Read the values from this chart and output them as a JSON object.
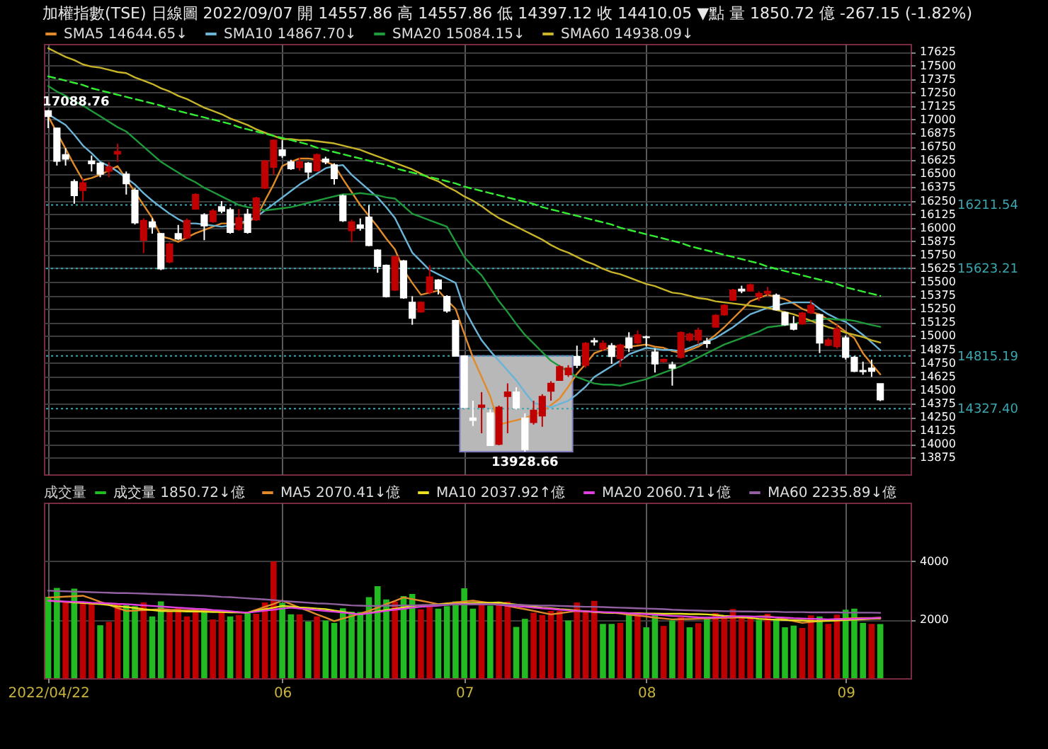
{
  "chart_data": [
    {
      "type": "candlestick",
      "title": "加權指數(TSE)  日線圖  2022/09/07  開 14557.86  高 14557.86  低 14397.12  收 14410.05 ▼點  量 1850.72 億  -267.15 (-1.82%)",
      "categories": [
        "2022/04/22",
        null,
        null,
        null,
        null,
        null,
        null,
        null,
        null,
        null,
        null,
        null,
        null,
        null,
        null,
        null,
        null,
        null,
        null,
        null,
        null,
        null,
        null,
        null,
        null,
        null,
        null,
        "06",
        null,
        null,
        null,
        null,
        null,
        null,
        null,
        null,
        null,
        null,
        null,
        null,
        null,
        null,
        null,
        null,
        null,
        null,
        null,
        null,
        "07",
        null,
        null,
        null,
        null,
        null,
        null,
        null,
        null,
        null,
        null,
        null,
        null,
        null,
        null,
        null,
        null,
        null,
        null,
        null,
        null,
        "08",
        null,
        null,
        null,
        null,
        null,
        null,
        null,
        null,
        null,
        null,
        null,
        null,
        null,
        null,
        null,
        null,
        null,
        null,
        null,
        null,
        null,
        null,
        "09",
        null,
        null,
        null,
        null
      ],
      "ohlc": [
        [
          17081,
          17088.76,
          16921,
          17029
        ],
        [
          16921,
          16925,
          16575,
          16616
        ],
        [
          16676,
          16736,
          16575,
          16635
        ],
        [
          16427,
          16447,
          16222,
          16298
        ],
        [
          16346,
          16455,
          16246,
          16415
        ],
        [
          16616,
          16668,
          16520,
          16592
        ],
        [
          16596,
          16608,
          16467,
          16496
        ],
        [
          16523,
          16608,
          16467,
          16563
        ],
        [
          16683,
          16776,
          16608,
          16704
        ],
        [
          16496,
          16520,
          16307,
          16407
        ],
        [
          16346,
          16367,
          16030,
          16045
        ],
        [
          15885,
          16086,
          15765,
          16066
        ],
        [
          16054,
          16086,
          15945,
          16006
        ],
        [
          15946,
          15950,
          15608,
          15620
        ],
        [
          15684,
          15865,
          15672,
          15849
        ],
        [
          15946,
          16026,
          15885,
          15897
        ],
        [
          15906,
          16086,
          15894,
          16066
        ],
        [
          16174,
          16319,
          16166,
          16307
        ],
        [
          16118,
          16134,
          15885,
          16018
        ],
        [
          16057,
          16174,
          16045,
          16154
        ],
        [
          16194,
          16246,
          16134,
          16154
        ],
        [
          16166,
          16186,
          15945,
          15957
        ],
        [
          15985,
          16174,
          15973,
          16093
        ],
        [
          16126,
          16174,
          15945,
          15957
        ],
        [
          16074,
          16286,
          16062,
          16274
        ],
        [
          16367,
          16628,
          16358,
          16616
        ],
        [
          16559,
          16816,
          16487,
          16809
        ],
        [
          16720,
          16809,
          16647,
          16668
        ],
        [
          16608,
          16628,
          16535,
          16547
        ],
        [
          16556,
          16647,
          16527,
          16608
        ],
        [
          16596,
          16608,
          16455,
          16515
        ],
        [
          16527,
          16688,
          16520,
          16676
        ],
        [
          16635,
          16656,
          16587,
          16608
        ],
        [
          16580,
          16596,
          16399,
          16455
        ],
        [
          16295,
          16307,
          16054,
          16066
        ],
        [
          15973,
          16074,
          15865,
          16054
        ],
        [
          16026,
          16086,
          15973,
          15997
        ],
        [
          16098,
          16207,
          15829,
          15837
        ],
        [
          15793,
          15801,
          15584,
          15644
        ],
        [
          15653,
          15660,
          15355,
          15364
        ],
        [
          15424,
          15741,
          15416,
          15732
        ],
        [
          15693,
          15701,
          15344,
          15352
        ],
        [
          15311,
          15367,
          15103,
          15163
        ],
        [
          15223,
          15319,
          15214,
          15311
        ],
        [
          15404,
          15653,
          15383,
          15544
        ],
        [
          15516,
          15524,
          15383,
          15436
        ],
        [
          15364,
          15376,
          15214,
          15231
        ],
        [
          15142,
          15150,
          14810,
          14814
        ],
        [
          14814,
          14815,
          14330,
          14340
        ],
        [
          14240,
          14401,
          14167,
          14220
        ],
        [
          14341,
          14480,
          14100,
          14360
        ],
        [
          14288,
          14320,
          13983,
          13987
        ],
        [
          13999,
          14356,
          13989,
          14340
        ],
        [
          14440,
          14561,
          14100,
          14480
        ],
        [
          14480,
          14525,
          14320,
          14332
        ],
        [
          14240,
          14284,
          13928.66,
          13950
        ],
        [
          14200,
          14401,
          14180,
          14312
        ],
        [
          14260,
          14461,
          14160,
          14440
        ],
        [
          14489,
          14581,
          14401,
          14561
        ],
        [
          14589,
          14729,
          14585,
          14714
        ],
        [
          14641,
          14729,
          14621,
          14702
        ],
        [
          14810,
          14910,
          14702,
          14729
        ],
        [
          14729,
          14942,
          14705,
          14930
        ],
        [
          14955,
          14982,
          14910,
          14945
        ],
        [
          14882,
          14958,
          14862,
          14930
        ],
        [
          14910,
          14934,
          14741,
          14810
        ],
        [
          14790,
          14928,
          14714,
          14914
        ],
        [
          14982,
          15034,
          14850,
          14889
        ],
        [
          14934,
          15051,
          14922,
          15010
        ],
        [
          14990,
          15003,
          14902,
          14985
        ],
        [
          14850,
          14886,
          14661,
          14741
        ],
        [
          14762,
          14790,
          14753,
          14781
        ],
        [
          14733,
          14762,
          14540,
          14702
        ],
        [
          14802,
          15042,
          14790,
          15030
        ],
        [
          14962,
          15030,
          14946,
          15015
        ],
        [
          14962,
          15075,
          14922,
          15051
        ],
        [
          14950,
          14982,
          14889,
          14930
        ],
        [
          15082,
          15202,
          15075,
          15190
        ],
        [
          15195,
          15292,
          15187,
          15283
        ],
        [
          15331,
          15436,
          15323,
          15424
        ],
        [
          15432,
          15464,
          15395,
          15416
        ],
        [
          15416,
          15484,
          15412,
          15472
        ],
        [
          15364,
          15412,
          15323,
          15392
        ],
        [
          15395,
          15452,
          15371,
          15412
        ],
        [
          15376,
          15392,
          15235,
          15243
        ],
        [
          15215,
          15227,
          15094,
          15103
        ],
        [
          15111,
          15183,
          15051,
          15063
        ],
        [
          15111,
          15223,
          15103,
          15211
        ],
        [
          15215,
          15331,
          15202,
          15283
        ],
        [
          15195,
          15202,
          14841,
          14934
        ],
        [
          14914,
          14982,
          14906,
          14962
        ],
        [
          14902,
          15103,
          14882,
          15063
        ],
        [
          14982,
          15003,
          14781,
          14802
        ],
        [
          14802,
          14814,
          14665,
          14673
        ],
        [
          14680,
          14762,
          14641,
          14670
        ],
        [
          14702,
          14781,
          14621,
          14673
        ],
        [
          14557.86,
          14557.86,
          14397.12,
          14410.05
        ]
      ],
      "colors": [
        "#ffffff",
        "#ffffff",
        "#ffffff",
        "#ffffff",
        "#c00000",
        "#ffffff",
        "#ffffff",
        "#c00000",
        "#c00000",
        "#ffffff",
        "#ffffff",
        "#c00000",
        "#ffffff",
        "#ffffff",
        "#c00000",
        "#ffffff",
        "#c00000",
        "#c00000",
        "#ffffff",
        "#c00000",
        "#ffffff",
        "#ffffff",
        "#c00000",
        "#ffffff",
        "#c00000",
        "#c00000",
        "#c00000",
        "#ffffff",
        "#ffffff",
        "#c00000",
        "#ffffff",
        "#c00000",
        "#ffffff",
        "#ffffff",
        "#ffffff",
        "#c00000",
        "#ffffff",
        "#ffffff",
        "#ffffff",
        "#ffffff",
        "#c00000",
        "#ffffff",
        "#ffffff",
        "#c00000",
        "#c00000",
        "#ffffff",
        "#ffffff",
        "#ffffff",
        "#ffffff",
        "#ffffff",
        "#c00000",
        "#ffffff",
        "#c00000",
        "#c00000",
        "#ffffff",
        "#ffffff",
        "#c00000",
        "#c00000",
        "#c00000",
        "#c00000",
        "#c00000",
        "#ffffff",
        "#c00000",
        "#ffffff",
        "#c00000",
        "#ffffff",
        "#c00000",
        "#ffffff",
        "#c00000",
        "#ffffff",
        "#ffffff",
        "#c00000",
        "#ffffff",
        "#c00000",
        "#c00000",
        "#c00000",
        "#ffffff",
        "#c00000",
        "#c00000",
        "#c00000",
        "#ffffff",
        "#c00000",
        "#c00000",
        "#c00000",
        "#ffffff",
        "#ffffff",
        "#ffffff",
        "#c00000",
        "#c00000",
        "#ffffff",
        "#c00000",
        "#c00000",
        "#ffffff",
        "#ffffff",
        "#ffffff",
        "#ffffff",
        "#ffffff"
      ],
      "series": [
        {
          "type": "line",
          "name": "SMA5 14644.65↓",
          "color": "#e08a2a",
          "values": [
            17030,
            16880,
            16730,
            16580,
            16440,
            16460,
            16490,
            16530,
            16570,
            16450,
            16330,
            16210,
            16090,
            15920,
            15900,
            15870,
            15910,
            15950,
            15980,
            16010,
            16040,
            16040,
            16030,
            16060,
            16090,
            16250,
            16400,
            16570,
            16610,
            16640,
            16640,
            16630,
            16610,
            16580,
            16450,
            16330,
            16210,
            16110,
            16010,
            15900,
            15800,
            15610,
            15490,
            15380,
            15400,
            15420,
            15330,
            15250,
            15020,
            14800,
            14620,
            14440,
            14180,
            14200,
            14220,
            14240,
            14270,
            14300,
            14360,
            14420,
            14530,
            14650,
            14740,
            14840,
            14870,
            14900,
            14900,
            14900,
            14910,
            14920,
            14900,
            14890,
            14860,
            14840,
            14870,
            14900,
            14950,
            15010,
            15080,
            15160,
            15240,
            15320,
            15350,
            15380,
            15360,
            15340,
            15300,
            15250,
            15220,
            15200,
            15150,
            15100,
            15040,
            14980,
            14840,
            14740,
            14644.65
          ]
        },
        {
          "type": "line",
          "name": "SMA10 14867.70↓",
          "color": "#6ab4d8",
          "values": [
            17050,
            17000,
            16950,
            16860,
            16760,
            16690,
            16610,
            16570,
            16520,
            16460,
            16400,
            16320,
            16250,
            16190,
            16130,
            16080,
            16040,
            16040,
            16030,
            16020,
            16010,
            16020,
            16040,
            16070,
            16100,
            16160,
            16220,
            16280,
            16340,
            16400,
            16450,
            16500,
            16550,
            16570,
            16580,
            16490,
            16420,
            16350,
            16280,
            16190,
            16090,
            15930,
            15770,
            15690,
            15610,
            15570,
            15530,
            15490,
            15250,
            15100,
            14960,
            14860,
            14770,
            14680,
            14590,
            14480,
            14380,
            14360,
            14340,
            14370,
            14400,
            14460,
            14530,
            14620,
            14670,
            14720,
            14770,
            14830,
            14860,
            14890,
            14880,
            14870,
            14870,
            14860,
            14890,
            14920,
            14950,
            14980,
            15030,
            15080,
            15140,
            15200,
            15230,
            15260,
            15280,
            15300,
            15310,
            15310,
            15310,
            15250,
            15200,
            15160,
            15130,
            15070,
            15010,
            14940,
            14867.7
          ]
        },
        {
          "type": "line",
          "name": "SMA20 15084.15↓",
          "color": "#1f9a3a",
          "values": [
            17310,
            17260,
            17220,
            17170,
            17130,
            17080,
            17030,
            16980,
            16930,
            16890,
            16820,
            16750,
            16680,
            16610,
            16560,
            16510,
            16460,
            16420,
            16370,
            16330,
            16290,
            16250,
            16210,
            16190,
            16180,
            16160,
            16170,
            16180,
            16190,
            16210,
            16230,
            16250,
            16270,
            16290,
            16310,
            16310,
            16320,
            16310,
            16300,
            16280,
            16270,
            16200,
            16130,
            16100,
            16070,
            16040,
            16010,
            15870,
            15730,
            15640,
            15560,
            15440,
            15320,
            15220,
            15110,
            15010,
            14930,
            14850,
            14770,
            14720,
            14670,
            14620,
            14590,
            14560,
            14550,
            14550,
            14540,
            14560,
            14580,
            14600,
            14630,
            14660,
            14690,
            14720,
            14760,
            14800,
            14840,
            14880,
            14920,
            14950,
            14980,
            15010,
            15040,
            15080,
            15090,
            15100,
            15110,
            15130,
            15140,
            15150,
            15160,
            15150,
            15150,
            15140,
            15120,
            15100,
            15084.15
          ]
        },
        {
          "type": "line",
          "name": "SMA60 14938.09↓",
          "color": "#c8b428",
          "values": [
            17660,
            17620,
            17580,
            17550,
            17510,
            17490,
            17480,
            17460,
            17440,
            17430,
            17390,
            17360,
            17330,
            17290,
            17260,
            17220,
            17190,
            17150,
            17110,
            17080,
            17050,
            17010,
            16980,
            16950,
            16910,
            16880,
            16850,
            16820,
            16820,
            16810,
            16810,
            16800,
            16790,
            16780,
            16760,
            16740,
            16720,
            16690,
            16660,
            16630,
            16600,
            16570,
            16540,
            16500,
            16460,
            16430,
            16380,
            16340,
            16290,
            16250,
            16200,
            16140,
            16090,
            16050,
            16010,
            15970,
            15930,
            15890,
            15840,
            15800,
            15770,
            15730,
            15690,
            15660,
            15620,
            15590,
            15570,
            15540,
            15510,
            15480,
            15460,
            15430,
            15400,
            15390,
            15370,
            15350,
            15340,
            15320,
            15310,
            15300,
            15290,
            15280,
            15270,
            15260,
            15240,
            15220,
            15200,
            15170,
            15140,
            15110,
            15080,
            15060,
            15030,
            15010,
            14990,
            14960,
            14938.09
          ]
        },
        {
          "type": "line",
          "color": "#33ee33",
          "line_style": "dashed",
          "values": [
            17400,
            17380,
            17360,
            17340,
            17320,
            17290,
            17270,
            17250,
            17230,
            17210,
            17190,
            17170,
            17150,
            17130,
            17100,
            17080,
            17060,
            17040,
            17020,
            17000,
            16980,
            16960,
            16930,
            16910,
            16890,
            16870,
            16850,
            16830,
            16810,
            16790,
            16770,
            16740,
            16720,
            16700,
            16680,
            16660,
            16640,
            16620,
            16600,
            16580,
            16550,
            16530,
            16510,
            16490,
            16470,
            16450,
            16430,
            16410,
            16380,
            16360,
            16340,
            16320,
            16300,
            16280,
            16260,
            16240,
            16220,
            16190,
            16170,
            16150,
            16130,
            16110,
            16090,
            16070,
            16050,
            16030,
            16000,
            15980,
            15960,
            15940,
            15920,
            15900,
            15880,
            15860,
            15830,
            15810,
            15790,
            15770,
            15750,
            15730,
            15710,
            15690,
            15670,
            15640,
            15620,
            15600,
            15580,
            15560,
            15540,
            15520,
            15500,
            15480,
            15450,
            15430,
            15410,
            15390,
            15370
          ]
        }
      ],
      "ylim": [
        13720,
        17700
      ],
      "yticks": [
        13875,
        14000,
        14125,
        14250,
        14375,
        14500,
        14625,
        14750,
        14875,
        15000,
        15125,
        15250,
        15375,
        15500,
        15625,
        15750,
        15875,
        16000,
        16125,
        16250,
        16375,
        16500,
        16625,
        16750,
        16875,
        17000,
        17125,
        17250,
        17375,
        17500,
        17625
      ],
      "ref_lines": [
        {
          "axis": "y",
          "value": 16211.54,
          "label": "16211.54",
          "color": "#3aa6b0",
          "line_style": "dotted"
        },
        {
          "axis": "y",
          "value": 15623.21,
          "label": "15623.21",
          "color": "#3aa6b0",
          "line_style": "dotted"
        },
        {
          "axis": "y",
          "value": 14815.19,
          "label": "14815.19",
          "color": "#3aa6b0",
          "line_style": "dotted"
        },
        {
          "axis": "y",
          "value": 14327.4,
          "label": "14327.40",
          "color": "#3aa6b0",
          "line_style": "dotted"
        }
      ],
      "annotations": [
        {
          "text": "17088.76",
          "y": 17088.76
        },
        {
          "text": "13928.66",
          "y": 13928.66
        }
      ],
      "grid": true,
      "legend": "top left",
      "tick_labels": "y"
    },
    {
      "type": "bar",
      "legend_title": "成交量",
      "categories": [
        "2022/04/22",
        null,
        null,
        null,
        null,
        null,
        null,
        null,
        null,
        null,
        null,
        null,
        null,
        null,
        null,
        null,
        null,
        null,
        null,
        null,
        null,
        null,
        null,
        null,
        null,
        null,
        null,
        "06",
        null,
        null,
        null,
        null,
        null,
        null,
        null,
        null,
        null,
        null,
        null,
        null,
        null,
        null,
        null,
        null,
        null,
        null,
        null,
        null,
        "07",
        null,
        null,
        null,
        null,
        null,
        null,
        null,
        null,
        null,
        null,
        null,
        null,
        null,
        null,
        null,
        null,
        null,
        null,
        null,
        null,
        "08",
        null,
        null,
        null,
        null,
        null,
        null,
        null,
        null,
        null,
        null,
        null,
        null,
        null,
        null,
        null,
        null,
        null,
        null,
        null,
        null,
        null,
        null,
        "09",
        null,
        null,
        null,
        null
      ],
      "series": [
        {
          "name": "成交量 1850.72↓億",
          "values": [
            2784,
            3086,
            2587,
            3062,
            2610,
            2587,
            1810,
            1926,
            2552,
            2494,
            2459,
            2587,
            2111,
            2622,
            2297,
            2413,
            2111,
            2366,
            2378,
            2007,
            2320,
            2111,
            2158,
            2227,
            2204,
            2587,
            3990,
            2575,
            2181,
            2181,
            1937,
            2111,
            1972,
            1891,
            2390,
            2274,
            2262,
            2772,
            3144,
            2691,
            2610,
            2807,
            2877,
            2355,
            2436,
            2378,
            2459,
            2622,
            3074,
            2378,
            2610,
            2482,
            2610,
            2610,
            1752,
            2030,
            2239,
            2158,
            2297,
            2297,
            1972,
            2587,
            2262,
            2645,
            1856,
            1856,
            1891,
            2216,
            2239,
            1740,
            2181,
            1786,
            1972,
            2088,
            1740,
            1879,
            2100,
            2227,
            2065,
            2366,
            2111,
            2065,
            1995,
            2204,
            2030,
            1740,
            1798,
            1717,
            2146,
            2111,
            1856,
            2169,
            2343,
            2378,
            1891,
            1856,
            1850.72
          ],
          "colors": [
            "#22bb22",
            "#22bb22",
            "#c00000",
            "#22bb22",
            "#c00000",
            "#c00000",
            "#22bb22",
            "#c00000",
            "#c00000",
            "#22bb22",
            "#22bb22",
            "#c00000",
            "#22bb22",
            "#22bb22",
            "#c00000",
            "#c00000",
            "#c00000",
            "#c00000",
            "#22bb22",
            "#c00000",
            "#c00000",
            "#22bb22",
            "#c00000",
            "#22bb22",
            "#c00000",
            "#c00000",
            "#c00000",
            "#22bb22",
            "#22bb22",
            "#c00000",
            "#22bb22",
            "#c00000",
            "#22bb22",
            "#22bb22",
            "#22bb22",
            "#22bb22",
            "#22bb22",
            "#22bb22",
            "#22bb22",
            "#22bb22",
            "#c00000",
            "#22bb22",
            "#22bb22",
            "#c00000",
            "#c00000",
            "#22bb22",
            "#22bb22",
            "#22bb22",
            "#22bb22",
            "#22bb22",
            "#c00000",
            "#22bb22",
            "#c00000",
            "#c00000",
            "#22bb22",
            "#22bb22",
            "#c00000",
            "#c00000",
            "#c00000",
            "#c00000",
            "#22bb22",
            "#c00000",
            "#c00000",
            "#c00000",
            "#22bb22",
            "#22bb22",
            "#c00000",
            "#22bb22",
            "#c00000",
            "#22bb22",
            "#22bb22",
            "#c00000",
            "#22bb22",
            "#c00000",
            "#22bb22",
            "#c00000",
            "#22bb22",
            "#c00000",
            "#c00000",
            "#c00000",
            "#c00000",
            "#c00000",
            "#22bb22",
            "#c00000",
            "#22bb22",
            "#22bb22",
            "#22bb22",
            "#c00000",
            "#c00000",
            "#22bb22",
            "#c00000",
            "#c00000",
            "#22bb22",
            "#22bb22",
            "#22bb22",
            "#c00000",
            "#22bb22"
          ]
        },
        {
          "type": "line",
          "name": "MA5 2070.41↓億",
          "color": "#e08a2a",
          "values": [
            2760,
            2770,
            2790,
            2800,
            2820,
            2720,
            2610,
            2510,
            2400,
            2300,
            2310,
            2330,
            2340,
            2360,
            2340,
            2330,
            2320,
            2310,
            2300,
            2290,
            2270,
            2260,
            2250,
            2240,
            2340,
            2440,
            2540,
            2650,
            2530,
            2410,
            2300,
            2180,
            2070,
            1950,
            2040,
            2120,
            2210,
            2300,
            2410,
            2530,
            2640,
            2760,
            2700,
            2650,
            2590,
            2530,
            2560,
            2590,
            2620,
            2650,
            2610,
            2570,
            2530,
            2470,
            2410,
            2360,
            2300,
            2240,
            2180,
            2220,
            2260,
            2300,
            2280,
            2270,
            2250,
            2240,
            2210,
            2170,
            2140,
            2110,
            2070,
            2040,
            2010,
            2020,
            2020,
            2030,
            2040,
            2050,
            2060,
            2070,
            2080,
            2090,
            2110,
            2120,
            2070,
            2010,
            1950,
            1890,
            1920,
            1950,
            1980,
            2010,
            2040,
            2050,
            2060,
            2060,
            2070.41
          ]
        },
        {
          "type": "line",
          "name": "MA10 2037.92↑億",
          "color": "#e8e020",
          "values": [
            2650,
            2630,
            2610,
            2590,
            2570,
            2550,
            2530,
            2500,
            2460,
            2430,
            2400,
            2360,
            2330,
            2300,
            2290,
            2290,
            2280,
            2280,
            2270,
            2260,
            2260,
            2250,
            2250,
            2240,
            2300,
            2360,
            2410,
            2470,
            2450,
            2420,
            2400,
            2380,
            2360,
            2310,
            2270,
            2220,
            2180,
            2230,
            2280,
            2330,
            2370,
            2420,
            2470,
            2490,
            2500,
            2520,
            2540,
            2550,
            2560,
            2570,
            2570,
            2580,
            2590,
            2550,
            2520,
            2480,
            2450,
            2410,
            2390,
            2360,
            2340,
            2310,
            2290,
            2260,
            2240,
            2230,
            2230,
            2220,
            2220,
            2210,
            2210,
            2200,
            2200,
            2200,
            2190,
            2190,
            2180,
            2160,
            2130,
            2110,
            2080,
            2060,
            2030,
            2010,
            2000,
            1990,
            1980,
            1970,
            1960,
            1950,
            1960,
            1970,
            1990,
            2000,
            2010,
            2030,
            2037.92
          ]
        },
        {
          "type": "line",
          "name": "MA20 2060.71↓億",
          "color": "#e040e0",
          "values": [
            2650,
            2630,
            2620,
            2610,
            2600,
            2580,
            2570,
            2560,
            2540,
            2530,
            2510,
            2490,
            2470,
            2450,
            2430,
            2410,
            2390,
            2370,
            2360,
            2330,
            2310,
            2290,
            2260,
            2240,
            2270,
            2310,
            2340,
            2380,
            2410,
            2380,
            2360,
            2330,
            2300,
            2270,
            2240,
            2210,
            2180,
            2220,
            2260,
            2300,
            2340,
            2370,
            2410,
            2440,
            2460,
            2480,
            2510,
            2530,
            2530,
            2530,
            2530,
            2530,
            2510,
            2480,
            2460,
            2440,
            2410,
            2390,
            2370,
            2340,
            2320,
            2300,
            2290,
            2270,
            2260,
            2250,
            2240,
            2220,
            2200,
            2190,
            2170,
            2150,
            2130,
            2120,
            2100,
            2080,
            2070,
            2080,
            2090,
            2110,
            2120,
            2110,
            2100,
            2090,
            2080,
            2070,
            2050,
            2040,
            2030,
            2020,
            2010,
            2020,
            2020,
            2030,
            2040,
            2050,
            2060.71
          ]
        },
        {
          "type": "line",
          "name": "MA60 2235.89↓億",
          "color": "#9060a0",
          "values": [
            2990,
            2980,
            2970,
            2960,
            2950,
            2940,
            2930,
            2920,
            2910,
            2910,
            2900,
            2890,
            2880,
            2870,
            2860,
            2850,
            2840,
            2830,
            2820,
            2800,
            2780,
            2770,
            2750,
            2730,
            2710,
            2690,
            2670,
            2640,
            2620,
            2600,
            2580,
            2560,
            2550,
            2530,
            2510,
            2490,
            2480,
            2470,
            2470,
            2480,
            2480,
            2490,
            2490,
            2500,
            2500,
            2510,
            2510,
            2520,
            2520,
            2520,
            2530,
            2530,
            2520,
            2510,
            2510,
            2500,
            2490,
            2480,
            2480,
            2470,
            2460,
            2450,
            2440,
            2440,
            2430,
            2420,
            2410,
            2400,
            2390,
            2380,
            2370,
            2360,
            2340,
            2330,
            2320,
            2310,
            2300,
            2300,
            2290,
            2290,
            2280,
            2280,
            2270,
            2270,
            2270,
            2260,
            2260,
            2260,
            2250,
            2250,
            2250,
            2250,
            2240,
            2240,
            2240,
            2240,
            2235.89
          ]
        }
      ],
      "ylim": [
        0,
        6000
      ],
      "yticks": [
        2000,
        4000
      ],
      "grid": true,
      "legend": "top left"
    }
  ]
}
